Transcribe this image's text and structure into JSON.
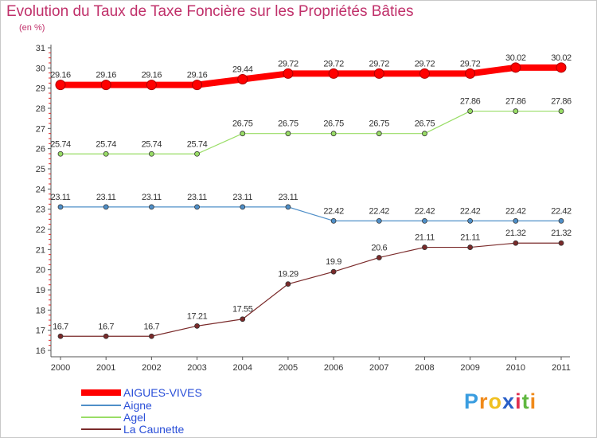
{
  "chart_data": {
    "type": "line",
    "title": "Evolution du Taux de Taxe Foncière sur les Propriétés Bâties",
    "subtitle": "(en %)",
    "x": [
      "2000",
      "2001",
      "2002",
      "2003",
      "2004",
      "2005",
      "2006",
      "2007",
      "2008",
      "2009",
      "2010",
      "2011"
    ],
    "ylim": [
      16,
      31
    ],
    "yticks": [
      "16",
      "17",
      "18",
      "19",
      "20",
      "21",
      "22",
      "23",
      "24",
      "25",
      "26",
      "27",
      "28",
      "29",
      "30",
      "31"
    ],
    "grid": false,
    "legend_position": "bottom-left",
    "series": [
      {
        "name": "AIGUES-VIVES",
        "color": "#ff0000",
        "values": [
          29.16,
          29.16,
          29.16,
          29.16,
          29.44,
          29.72,
          29.72,
          29.72,
          29.72,
          29.72,
          30.02,
          30.02
        ],
        "labels": [
          "29.16",
          "29.16",
          "29.16",
          "29.16",
          "29.44",
          "29.72",
          "29.72",
          "29.72",
          "29.72",
          "29.72",
          "30.02",
          "30.02"
        ]
      },
      {
        "name": "Aigne",
        "color": "#4f8fc8",
        "values": [
          23.11,
          23.11,
          23.11,
          23.11,
          23.11,
          23.11,
          22.42,
          22.42,
          22.42,
          22.42,
          22.42,
          22.42
        ],
        "labels": [
          "23.11",
          "23.11",
          "23.11",
          "23.11",
          "23.11",
          "23.11",
          "22.42",
          "22.42",
          "22.42",
          "22.42",
          "22.42",
          "22.42"
        ]
      },
      {
        "name": "Agel",
        "color": "#99dd66",
        "values": [
          25.74,
          25.74,
          25.74,
          25.74,
          26.75,
          26.75,
          26.75,
          26.75,
          26.75,
          27.86,
          27.86,
          27.86
        ],
        "labels": [
          "25.74",
          "25.74",
          "25.74",
          "25.74",
          "26.75",
          "26.75",
          "26.75",
          "26.75",
          "26.75",
          "27.86",
          "27.86",
          "27.86"
        ]
      },
      {
        "name": "La Caunette",
        "color": "#7a2a2a",
        "values": [
          16.7,
          16.7,
          16.7,
          17.21,
          17.55,
          19.29,
          19.9,
          20.6,
          21.11,
          21.11,
          21.32,
          21.32
        ],
        "labels": [
          "16.7",
          "16.7",
          "16.7",
          "17.21",
          "17.55",
          "19.29",
          "19.9",
          "20.6",
          "21.11",
          "21.11",
          "21.32",
          "21.32"
        ]
      }
    ]
  },
  "brand": {
    "text": "Proxiti",
    "letters": [
      "P",
      "r",
      "o",
      "x",
      "i",
      "t",
      "i"
    ],
    "colors": [
      "#3a9de0",
      "#f08a1a",
      "#f0c020",
      "#2a60c8",
      "#e03050",
      "#60b840",
      "#f08a1a"
    ]
  }
}
